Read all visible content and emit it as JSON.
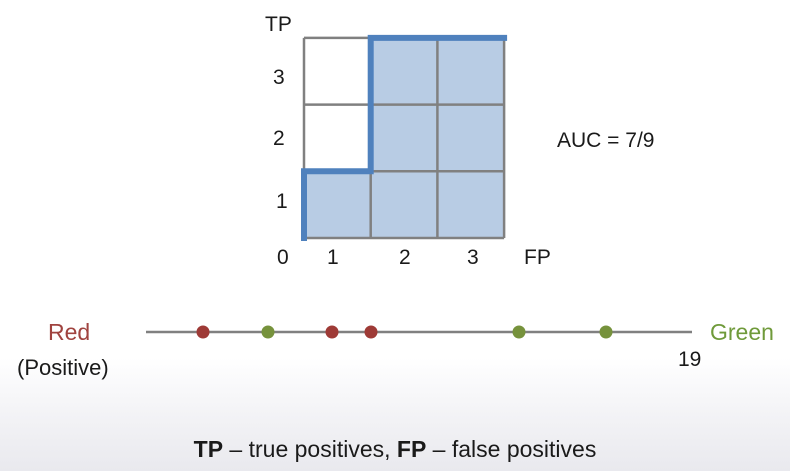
{
  "roc": {
    "y_axis_label": "TP",
    "x_axis_label": "FP",
    "origin_label": "0",
    "x_ticks": [
      "1",
      "2",
      "3"
    ],
    "y_ticks": [
      "1",
      "2",
      "3"
    ],
    "auc_label": "AUC = 7/9",
    "grid": {
      "cols": 3,
      "rows": 3
    },
    "filled_cells": [
      {
        "col": 0,
        "row": 0
      },
      {
        "col": 1,
        "row": 0
      },
      {
        "col": 1,
        "row": 1
      },
      {
        "col": 1,
        "row": 2
      },
      {
        "col": 2,
        "row": 0
      },
      {
        "col": 2,
        "row": 1
      },
      {
        "col": 2,
        "row": 2
      }
    ],
    "curve": [
      [
        0,
        0
      ],
      [
        0,
        1
      ],
      [
        1,
        1
      ],
      [
        1,
        3
      ],
      [
        3,
        3
      ]
    ],
    "fill_color": "#b8cce4",
    "curve_color": "#4f81bd",
    "grid_color": "#808080"
  },
  "ranking": {
    "left_label": "Red",
    "left_sublabel": "(Positive)",
    "right_label": "Green",
    "end_value": "19",
    "line_color": "#808080",
    "points": [
      {
        "class": "red"
      },
      {
        "class": "green"
      },
      {
        "class": "red"
      },
      {
        "class": "red"
      },
      {
        "class": "green"
      },
      {
        "class": "green"
      }
    ],
    "colors": {
      "red": "#9e3a36",
      "green": "#76923c"
    }
  },
  "caption": {
    "tp_abbr": "TP",
    "tp_text": " – true positives, ",
    "fp_abbr": "FP",
    "fp_text": " – false positives"
  }
}
